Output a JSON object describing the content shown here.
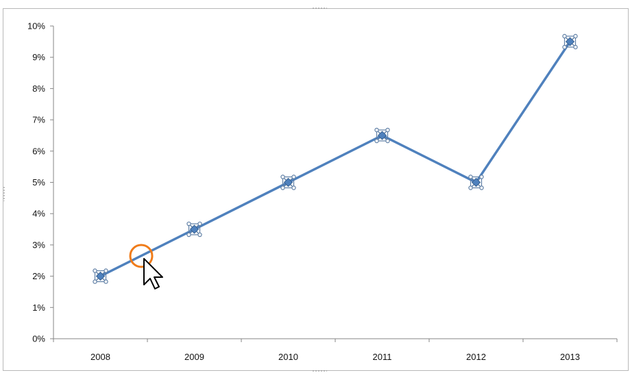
{
  "chart_data": {
    "type": "line",
    "categories": [
      "2008",
      "2009",
      "2010",
      "2011",
      "2012",
      "2013"
    ],
    "series": [
      {
        "values": [
          2.0,
          3.5,
          5.0,
          6.5,
          5.0,
          9.5
        ],
        "color": "#4f81bd",
        "marker": "diamond",
        "selected": true
      }
    ],
    "y_ticks": [
      "0%",
      "1%",
      "2%",
      "3%",
      "4%",
      "5%",
      "6%",
      "7%",
      "8%",
      "9%",
      "10%"
    ],
    "ylim": [
      0,
      10
    ],
    "y_unit": "%",
    "grid": false,
    "legend": "none"
  },
  "cursor": {
    "icon": "arrow-pointer-icon",
    "highlight": "orange-circle-icon",
    "highlight_color": "#f07c1a"
  }
}
